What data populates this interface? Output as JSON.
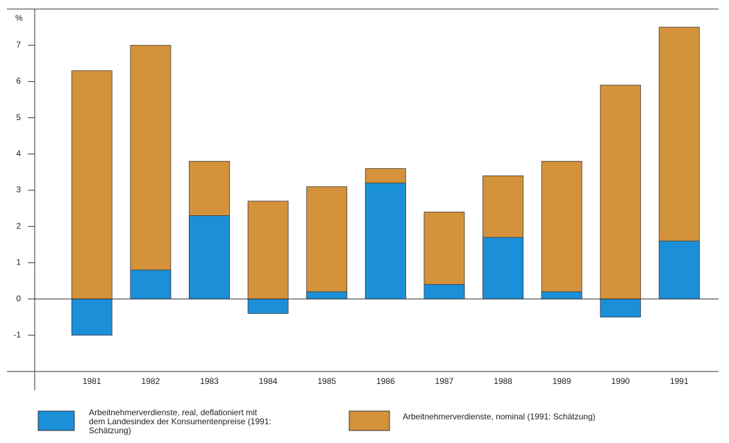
{
  "chart_data": {
    "type": "bar",
    "y_label": "%",
    "categories": [
      "1981",
      "1982",
      "1983",
      "1984",
      "1985",
      "1986",
      "1987",
      "1988",
      "1989",
      "1990",
      "1991"
    ],
    "series": [
      {
        "name": "Arbeitnehmerverdienste, real, deflationiert mit dem Landesindex der Konsumentenpreise (1991: Schätzung)",
        "color": "#1b8fd8",
        "values": [
          -1.0,
          0.8,
          2.3,
          -0.4,
          0.2,
          3.2,
          0.4,
          1.7,
          0.2,
          -0.5,
          1.6
        ]
      },
      {
        "name": "Arbeitnehmerverdienste, nominal (1991: Schätzung)",
        "color": "#d4923a",
        "values": [
          6.3,
          7.0,
          3.8,
          2.7,
          3.1,
          3.6,
          2.4,
          3.4,
          3.8,
          5.9,
          7.5
        ]
      }
    ],
    "ylim": [
      -2,
      8
    ],
    "yticks": [
      -1,
      0,
      1,
      2,
      3,
      4,
      5,
      6,
      7
    ]
  }
}
